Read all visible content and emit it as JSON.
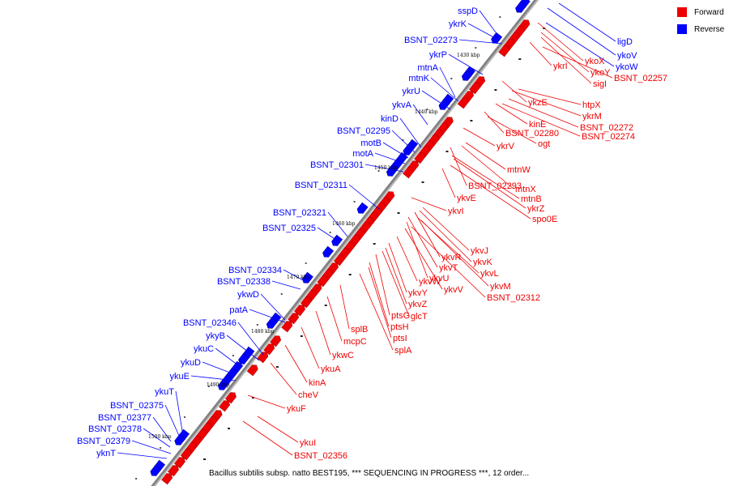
{
  "legend": [
    {
      "label": "Forward",
      "color": "#ee0000"
    },
    {
      "label": "Reverse",
      "color": "#0000ff"
    }
  ],
  "caption": "Bacillus subtilis subsp. natto BEST195, *** SEQUENCING IN PROGRESS ***, 12 order...",
  "colors": {
    "forward": "#ee0000",
    "reverse": "#0000ff",
    "backbone": "#808080"
  },
  "scale_ticks": [
    "1430 kbp",
    "1440 kbp",
    "1450 kbp",
    "1460 kbp",
    "1470 kbp",
    "1480 kbp",
    "1490 kbp",
    "1500 kbp"
  ],
  "reverse_labels": [
    "sspD",
    "ykrK",
    "BSNT_02273",
    "ykrP",
    "mtnA",
    "mtnK",
    "ykrU",
    "ykvA",
    "kinD",
    "BSNT_02295",
    "motB",
    "motA",
    "BSNT_02301",
    "BSNT_02311",
    "BSNT_02321",
    "BSNT_02325",
    "BSNT_02334",
    "BSNT_02338",
    "ykwD",
    "patA",
    "BSNT_02346",
    "ykyB",
    "ykuC",
    "ykuD",
    "ykuE",
    "ykuT",
    "BSNT_02375",
    "BSNT_02377",
    "BSNT_02378",
    "BSNT_02379",
    "yknT"
  ],
  "reverse_far_labels": [
    "ligD",
    "ykoV",
    "ykoW"
  ],
  "forward_labels": [
    "ykoX",
    "ykoY",
    "ykrI",
    "sigI",
    "BSNT_02257",
    "ykzE",
    "htpX",
    "ykrM",
    "kinE",
    "BSNT_02272",
    "BSNT_02280",
    "BSNT_02274",
    "ogt",
    "ykrV",
    "mtnW",
    "BSNT_02293",
    "mtnX",
    "ykvE",
    "mtnB",
    "ykrZ",
    "ykvI",
    "spo0E",
    "ykvJ",
    "ykvR",
    "ykvK",
    "ykvT",
    "ykvL",
    "ykvU",
    "ykvM",
    "ykvV",
    "ykvW",
    "BSNT_02312",
    "ykvY",
    "ykvZ",
    "ptsG",
    "glcT",
    "ptsH",
    "splB",
    "ptsI",
    "mcpC",
    "splA",
    "ykwC",
    "ykuA",
    "kinA",
    "cheV",
    "ykuF",
    "ykuI",
    "BSNT_02356"
  ]
}
